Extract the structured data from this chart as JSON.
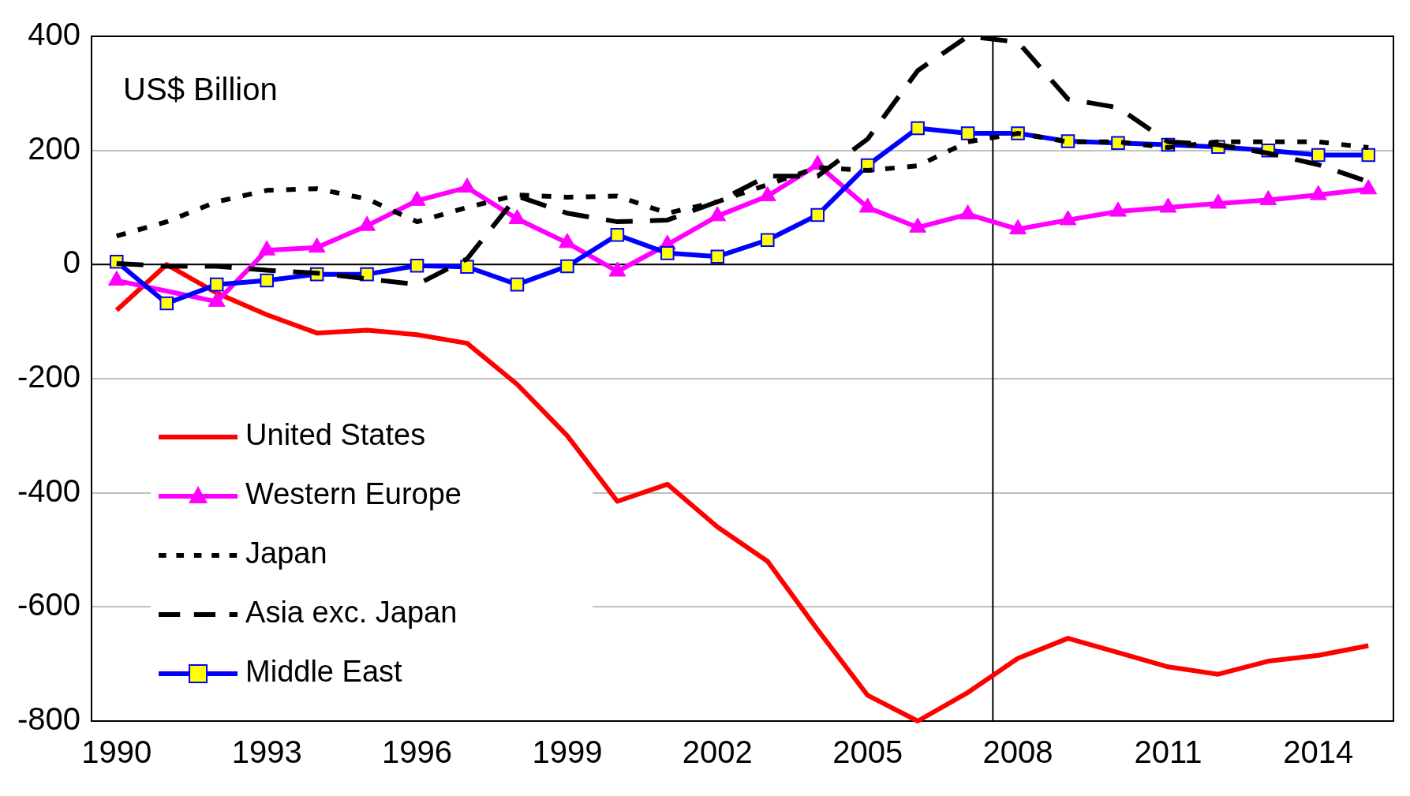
{
  "chart_data": {
    "type": "line",
    "annotations": [
      "US$ Billion"
    ],
    "x": [
      1990,
      1991,
      1992,
      1993,
      1994,
      1995,
      1996,
      1997,
      1998,
      1999,
      2000,
      2001,
      2002,
      2003,
      2004,
      2005,
      2006,
      2007,
      2008,
      2009,
      2010,
      2011,
      2012,
      2013,
      2014,
      2015
    ],
    "xlim": [
      1989.5,
      2015.5
    ],
    "xticks": [
      1990,
      1993,
      1996,
      1999,
      2002,
      2005,
      2008,
      2011,
      2014
    ],
    "ylim": [
      -800,
      400
    ],
    "yticks": [
      -800,
      -600,
      -400,
      -200,
      0,
      200,
      400
    ],
    "grid": "y",
    "legend": "bottom left",
    "ref_lines": [
      {
        "axis": "y",
        "value": 0,
        "color": "#000000"
      },
      {
        "axis": "x",
        "value": 2007.5,
        "color": "#000000"
      }
    ],
    "series": [
      {
        "name": "United States",
        "color": "#ff0000",
        "marker": "none",
        "line_style": "solid",
        "values": [
          -80,
          0,
          -50,
          -88,
          -120,
          -115,
          -123,
          -138,
          -210,
          -300,
          -415,
          -385,
          -460,
          -520,
          -640,
          -755,
          -800,
          -750,
          -690,
          -655,
          -680,
          -705,
          -718,
          -695,
          -685,
          -668
        ]
      },
      {
        "name": "Western Europe",
        "color": "#ff00ff",
        "marker": "triangle",
        "line_style": "solid",
        "values": [
          -28,
          null,
          -65,
          25,
          30,
          68,
          112,
          135,
          80,
          38,
          -12,
          35,
          85,
          120,
          175,
          100,
          65,
          88,
          62,
          78,
          93,
          100,
          107,
          113,
          122,
          132
        ]
      },
      {
        "name": "Japan",
        "color": "#000000",
        "marker": "none",
        "line_style": "dotted",
        "values": [
          50,
          75,
          110,
          130,
          133,
          115,
          75,
          100,
          122,
          118,
          120,
          90,
          110,
          140,
          170,
          165,
          173,
          215,
          230,
          215,
          215,
          205,
          215,
          215,
          215,
          205
        ]
      },
      {
        "name": "Asia exc. Japan",
        "color": "#000000",
        "marker": "none",
        "line_style": "dashed",
        "values": [
          2,
          -3,
          -3,
          -10,
          -15,
          -25,
          -35,
          10,
          120,
          90,
          75,
          78,
          110,
          155,
          155,
          220,
          340,
          400,
          390,
          290,
          275,
          215,
          210,
          195,
          175,
          145
        ]
      },
      {
        "name": "Middle East",
        "color": "#0000ff",
        "marker": "square",
        "line_style": "solid",
        "values": [
          5,
          -68,
          -35,
          -28,
          -17,
          -17,
          -2,
          -4,
          -35,
          -3,
          52,
          20,
          14,
          43,
          87,
          174,
          239,
          230,
          230,
          216,
          213,
          210,
          206,
          200,
          192,
          192
        ]
      }
    ]
  }
}
